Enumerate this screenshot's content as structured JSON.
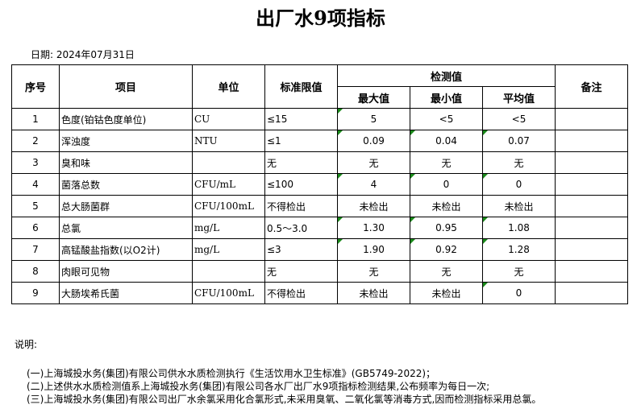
{
  "title": "出厂水9项指标",
  "date_label": "日期: 2024年07月31日",
  "headers": {
    "seq": "序号",
    "item": "项目",
    "unit": "单位",
    "limit": "标准限值",
    "measured": "检测值",
    "max": "最大值",
    "min": "最小值",
    "avg": "平均值",
    "remark": "备注"
  },
  "rows": [
    {
      "seq": "1",
      "item": "色度(铂钴色度单位)",
      "unit": "CU",
      "limit": "≤15",
      "max": "5",
      "min": "<5",
      "avg": "<5",
      "remark": "",
      "flags": [
        true,
        false,
        false
      ]
    },
    {
      "seq": "2",
      "item": "浑浊度",
      "unit": "NTU",
      "limit": "≤1",
      "max": "0.09",
      "min": "0.04",
      "avg": "0.07",
      "remark": "",
      "flags": [
        true,
        true,
        true
      ]
    },
    {
      "seq": "3",
      "item": "臭和味",
      "unit": "",
      "limit": "无",
      "max": "无",
      "min": "无",
      "avg": "无",
      "remark": "",
      "flags": [
        false,
        false,
        false
      ]
    },
    {
      "seq": "4",
      "item": "菌落总数",
      "unit": "CFU/mL",
      "limit": "≤100",
      "max": "4",
      "min": "0",
      "avg": "0",
      "remark": "",
      "flags": [
        true,
        true,
        true
      ]
    },
    {
      "seq": "5",
      "item": "总大肠菌群",
      "unit": "CFU/100mL",
      "limit": "不得检出",
      "max": "未检出",
      "min": "未检出",
      "avg": "未检出",
      "remark": "",
      "flags": [
        false,
        false,
        false
      ]
    },
    {
      "seq": "6",
      "item": "总氯",
      "unit": "mg/L",
      "limit": "0.5～3.0",
      "max": "1.30",
      "min": "0.95",
      "avg": "1.08",
      "remark": "",
      "flags": [
        true,
        true,
        true
      ]
    },
    {
      "seq": "7",
      "item": "高锰酸盐指数(以O2计)",
      "unit": "mg/L",
      "limit": "≤3",
      "max": "1.90",
      "min": "0.92",
      "avg": "1.28",
      "remark": "",
      "flags": [
        true,
        true,
        true
      ]
    },
    {
      "seq": "8",
      "item": "肉眼可见物",
      "unit": "",
      "limit": "无",
      "max": "无",
      "min": "无",
      "avg": "无",
      "remark": "",
      "flags": [
        false,
        false,
        false
      ]
    },
    {
      "seq": "9",
      "item": "大肠埃希氏菌",
      "unit": "CFU/100mL",
      "limit": "不得检出",
      "max": "未检出",
      "min": "未检出",
      "avg": "0",
      "remark": "",
      "flags": [
        false,
        false,
        true
      ]
    }
  ],
  "notes": {
    "label": "说明:",
    "items": [
      "(一)上海城投水务(集团)有限公司供水水质检测执行《生活饮用水卫生标准》(GB5749-2022)；",
      "(二)上述供水水质检测值系上海城投水务(集团)有限公司各水厂出厂水9项指标检测结果,公布频率为每日一次;",
      "(三)上海城投水务(集团)有限公司出厂水余氯采用化合氯形式,未采用臭氧、二氧化氯等消毒方式,因而检测指标采用总氯。"
    ]
  }
}
